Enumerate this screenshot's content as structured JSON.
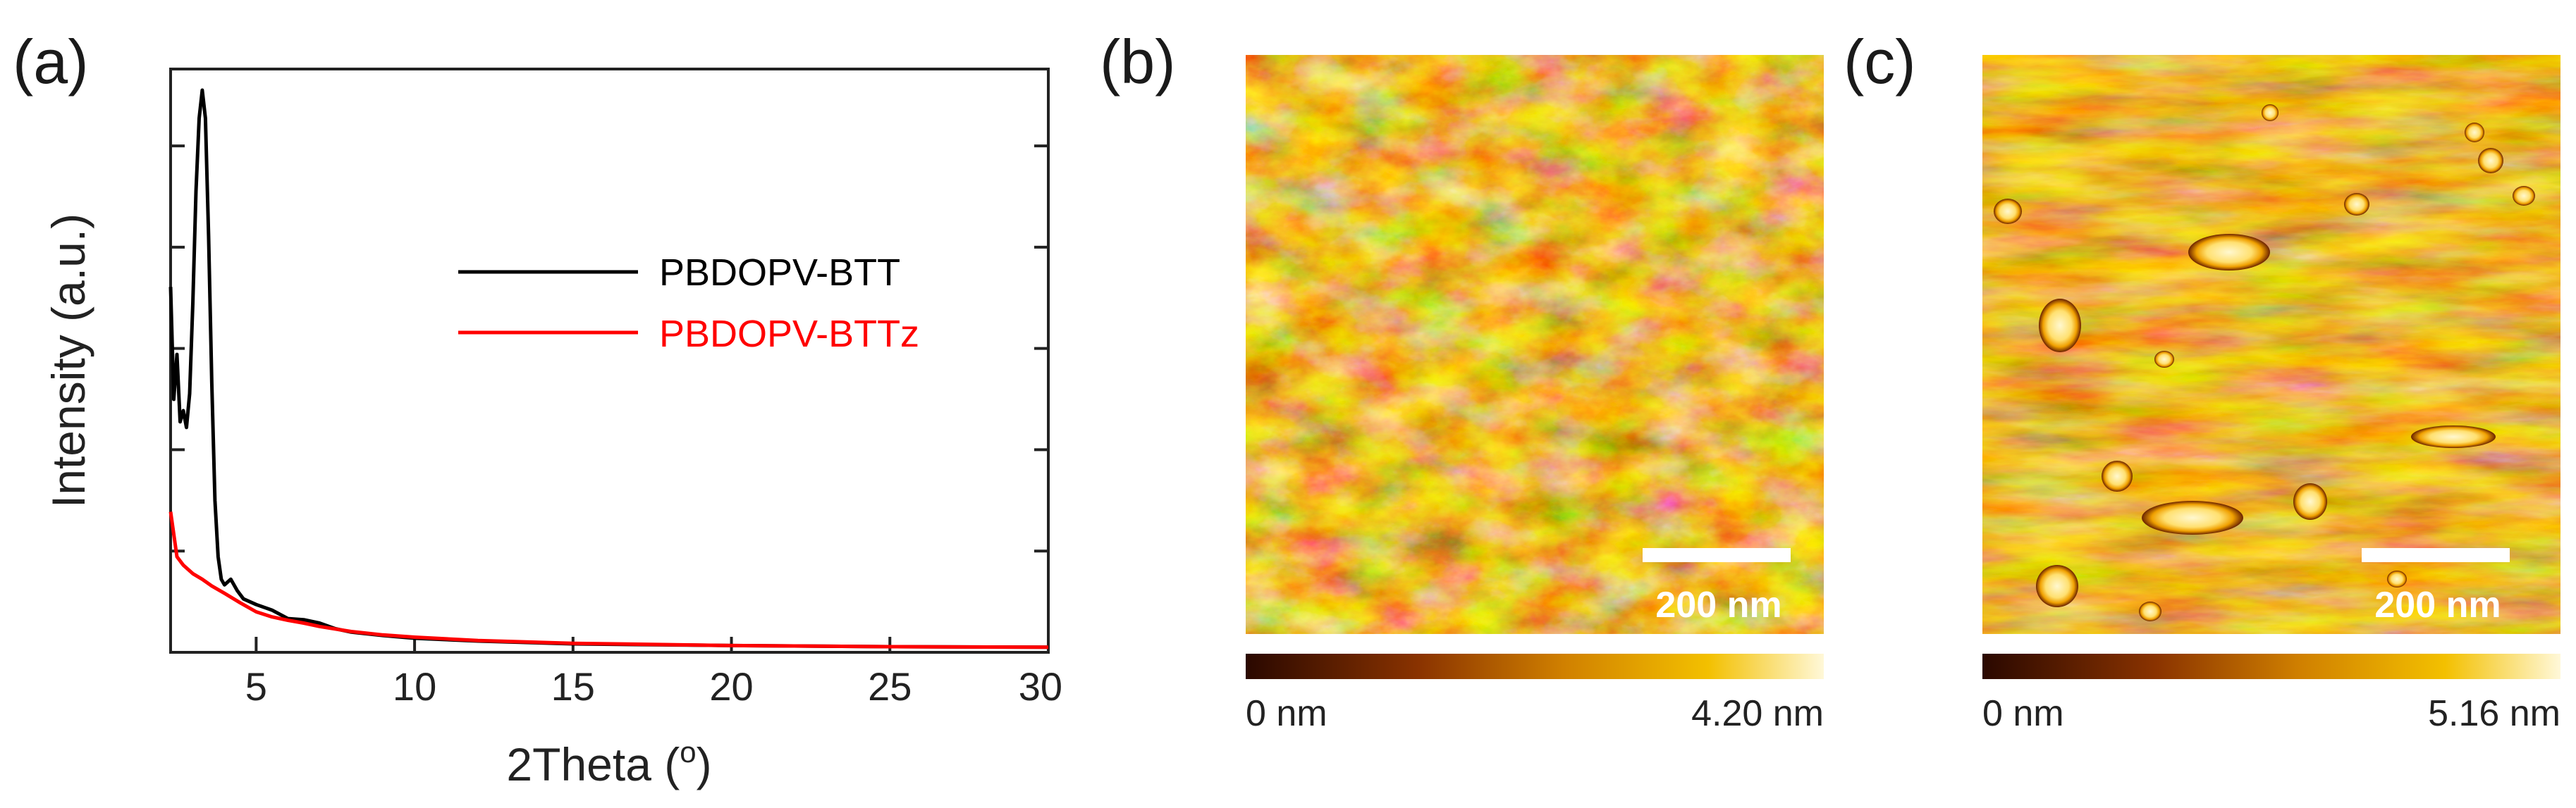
{
  "panels": {
    "a": {
      "label": "(a)"
    },
    "b": {
      "label": "(b)",
      "scale_bar": "200 nm",
      "colorbar_min": "0 nm",
      "colorbar_max": "4.20 nm"
    },
    "c": {
      "label": "(c)",
      "scale_bar": "200 nm",
      "colorbar_min": "0 nm",
      "colorbar_max": "5.16 nm"
    }
  },
  "colors": {
    "series_1": "#000000",
    "series_2": "#ff0000",
    "afm_dark": "#3a0e00",
    "afm_mid": "#c87a00",
    "afm_light": "#fff4c8"
  },
  "chart_data": {
    "type": "line",
    "title": "",
    "xlabel": "2Theta (°)",
    "xlabel_parts": {
      "main": "2Theta (",
      "sup": "o",
      "close": ")"
    },
    "ylabel": "Intensity (a.u.)",
    "xlim": [
      2.3,
      30
    ],
    "ylim": [
      0,
      1
    ],
    "xticks": [
      5,
      10,
      15,
      20,
      25,
      30
    ],
    "xtick_labels": [
      "5",
      "10",
      "15",
      "20",
      "25",
      "30"
    ],
    "y_tick_count": 5,
    "legend_position": "upper-right",
    "series": [
      {
        "name": "PBDOPV-BTT",
        "color": "#000000",
        "points": [
          [
            2.3,
            0.65
          ],
          [
            2.4,
            0.45
          ],
          [
            2.5,
            0.53
          ],
          [
            2.6,
            0.41
          ],
          [
            2.7,
            0.43
          ],
          [
            2.8,
            0.4
          ],
          [
            2.9,
            0.46
          ],
          [
            3.0,
            0.62
          ],
          [
            3.1,
            0.82
          ],
          [
            3.2,
            0.95
          ],
          [
            3.3,
            1.0
          ],
          [
            3.4,
            0.95
          ],
          [
            3.5,
            0.74
          ],
          [
            3.6,
            0.48
          ],
          [
            3.7,
            0.27
          ],
          [
            3.8,
            0.17
          ],
          [
            3.9,
            0.13
          ],
          [
            4.0,
            0.12
          ],
          [
            4.2,
            0.13
          ],
          [
            4.4,
            0.11
          ],
          [
            4.6,
            0.095
          ],
          [
            5.0,
            0.085
          ],
          [
            5.5,
            0.075
          ],
          [
            6.0,
            0.06
          ],
          [
            6.5,
            0.058
          ],
          [
            7.0,
            0.052
          ],
          [
            7.5,
            0.042
          ],
          [
            8.0,
            0.036
          ],
          [
            9.0,
            0.03
          ],
          [
            10.0,
            0.025
          ],
          [
            12.0,
            0.02
          ],
          [
            15.0,
            0.015
          ],
          [
            20.0,
            0.012
          ],
          [
            25.0,
            0.01
          ],
          [
            30.0,
            0.009
          ]
        ]
      },
      {
        "name": "PBDOPV-BTTz",
        "color": "#ff0000",
        "points": [
          [
            2.3,
            0.25
          ],
          [
            2.4,
            0.21
          ],
          [
            2.5,
            0.17
          ],
          [
            2.7,
            0.155
          ],
          [
            3.0,
            0.14
          ],
          [
            3.3,
            0.13
          ],
          [
            3.6,
            0.118
          ],
          [
            4.0,
            0.105
          ],
          [
            4.5,
            0.088
          ],
          [
            5.0,
            0.072
          ],
          [
            5.5,
            0.063
          ],
          [
            6.0,
            0.057
          ],
          [
            6.5,
            0.052
          ],
          [
            7.0,
            0.046
          ],
          [
            8.0,
            0.037
          ],
          [
            9.0,
            0.031
          ],
          [
            10.0,
            0.027
          ],
          [
            12.0,
            0.021
          ],
          [
            15.0,
            0.016
          ],
          [
            20.0,
            0.012
          ],
          [
            25.0,
            0.01
          ],
          [
            30.0,
            0.009
          ]
        ]
      }
    ]
  }
}
